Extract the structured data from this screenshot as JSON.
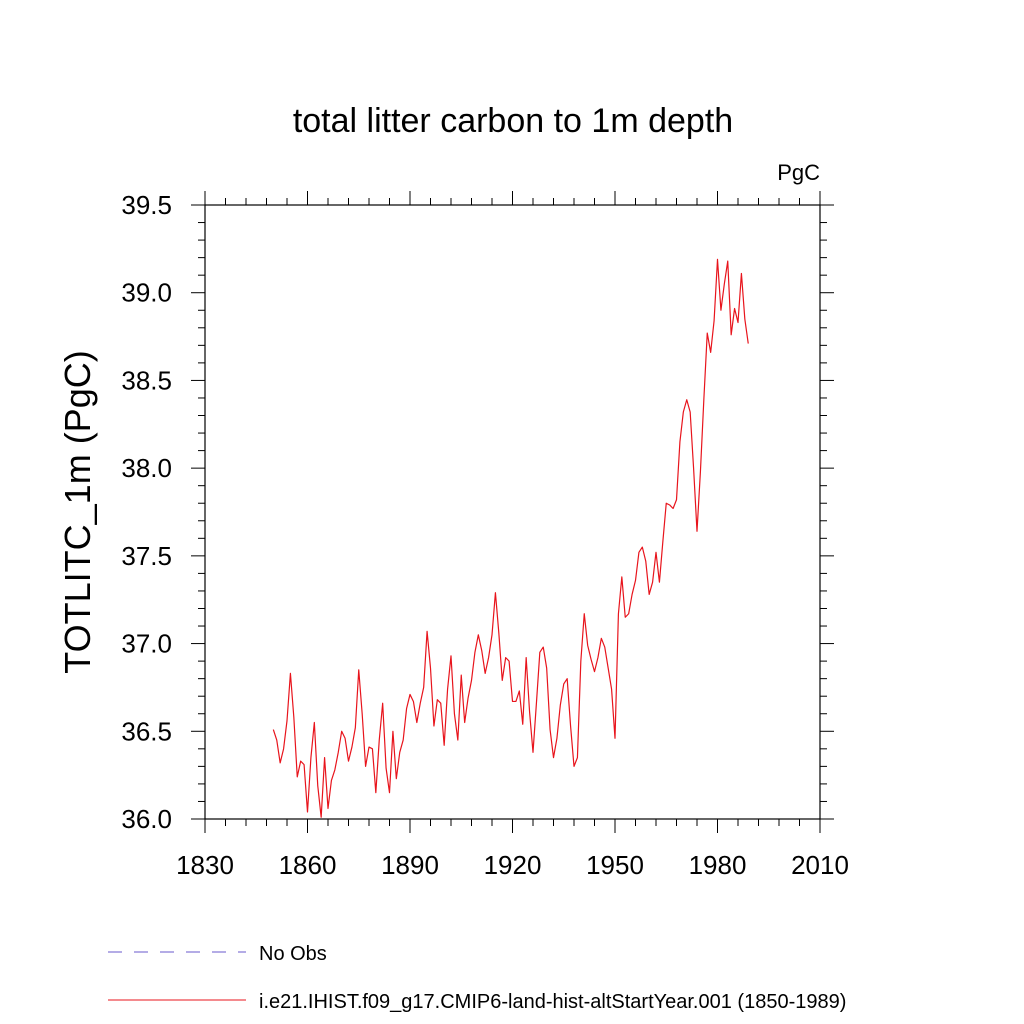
{
  "chart_data": {
    "type": "line",
    "title": "total litter carbon to 1m depth",
    "units_label": "PgC",
    "xlabel": "",
    "ylabel": "TOTLITC_1m  (PgC)",
    "xlim": [
      1830,
      2010
    ],
    "ylim": [
      36.0,
      39.5
    ],
    "x_ticks": [
      "1830",
      "1860",
      "1890",
      "1920",
      "1950",
      "1980",
      "2010"
    ],
    "y_ticks": [
      "36.0",
      "36.5",
      "37.0",
      "37.5",
      "38.0",
      "38.5",
      "39.0",
      "39.5"
    ],
    "grid": false,
    "legend_placement": "bottom-left",
    "series": [
      {
        "name": "No Obs",
        "color": "#6a5acd",
        "style": "dashed",
        "x": [],
        "y": []
      },
      {
        "name": "i.e21.IHIST.f09_g17.CMIP6-land-hist-altStartYear.001 (1850-1989)",
        "color": "#e8141c",
        "style": "solid",
        "x": [
          1850,
          1851,
          1852,
          1853,
          1854,
          1855,
          1856,
          1857,
          1858,
          1859,
          1860,
          1861,
          1862,
          1863,
          1864,
          1865,
          1866,
          1867,
          1868,
          1869,
          1870,
          1871,
          1872,
          1873,
          1874,
          1875,
          1876,
          1877,
          1878,
          1879,
          1880,
          1881,
          1882,
          1883,
          1884,
          1885,
          1886,
          1887,
          1888,
          1889,
          1890,
          1891,
          1892,
          1893,
          1894,
          1895,
          1896,
          1897,
          1898,
          1899,
          1900,
          1901,
          1902,
          1903,
          1904,
          1905,
          1906,
          1907,
          1908,
          1909,
          1910,
          1911,
          1912,
          1913,
          1914,
          1915,
          1916,
          1917,
          1918,
          1919,
          1920,
          1921,
          1922,
          1923,
          1924,
          1925,
          1926,
          1927,
          1928,
          1929,
          1930,
          1931,
          1932,
          1933,
          1934,
          1935,
          1936,
          1937,
          1938,
          1939,
          1940,
          1941,
          1942,
          1943,
          1944,
          1945,
          1946,
          1947,
          1948,
          1949,
          1950,
          1951,
          1952,
          1953,
          1954,
          1955,
          1956,
          1957,
          1958,
          1959,
          1960,
          1961,
          1962,
          1963,
          1964,
          1965,
          1966,
          1967,
          1968,
          1969,
          1970,
          1971,
          1972,
          1973,
          1974,
          1975,
          1976,
          1977,
          1978,
          1979,
          1980,
          1981,
          1982,
          1983,
          1984,
          1985,
          1986,
          1987,
          1988,
          1989
        ],
        "y": [
          36.51,
          36.45,
          36.32,
          36.4,
          36.56,
          36.83,
          36.58,
          36.24,
          36.33,
          36.31,
          36.04,
          36.35,
          36.55,
          36.19,
          36.01,
          36.35,
          36.06,
          36.22,
          36.28,
          36.38,
          36.5,
          36.46,
          36.33,
          36.41,
          36.52,
          36.85,
          36.6,
          36.3,
          36.41,
          36.4,
          36.15,
          36.45,
          36.66,
          36.29,
          36.15,
          36.5,
          36.23,
          36.38,
          36.45,
          36.63,
          36.71,
          36.67,
          36.55,
          36.66,
          36.75,
          37.07,
          36.86,
          36.53,
          36.68,
          36.66,
          36.42,
          36.74,
          36.93,
          36.6,
          36.45,
          36.82,
          36.55,
          36.69,
          36.79,
          36.95,
          37.05,
          36.96,
          36.83,
          36.92,
          37.05,
          37.29,
          37.06,
          36.79,
          36.92,
          36.9,
          36.67,
          36.67,
          36.73,
          36.54,
          36.92,
          36.61,
          36.38,
          36.66,
          36.95,
          36.98,
          36.86,
          36.51,
          36.35,
          36.46,
          36.65,
          36.77,
          36.8,
          36.53,
          36.3,
          36.35,
          36.9,
          37.17,
          36.99,
          36.91,
          36.84,
          36.92,
          37.03,
          36.98,
          36.86,
          36.74,
          36.46,
          37.17,
          37.38,
          37.15,
          37.17,
          37.28,
          37.36,
          37.52,
          37.55,
          37.47,
          37.28,
          37.35,
          37.52,
          37.35,
          37.58,
          37.8,
          37.79,
          37.77,
          37.82,
          38.15,
          38.32,
          38.39,
          38.32,
          38.0,
          37.64,
          37.98,
          38.39,
          38.77,
          38.66,
          38.84,
          39.19,
          38.9,
          39.05,
          39.18,
          38.76,
          38.91,
          38.83,
          39.11,
          38.85,
          38.71
        ]
      }
    ]
  }
}
